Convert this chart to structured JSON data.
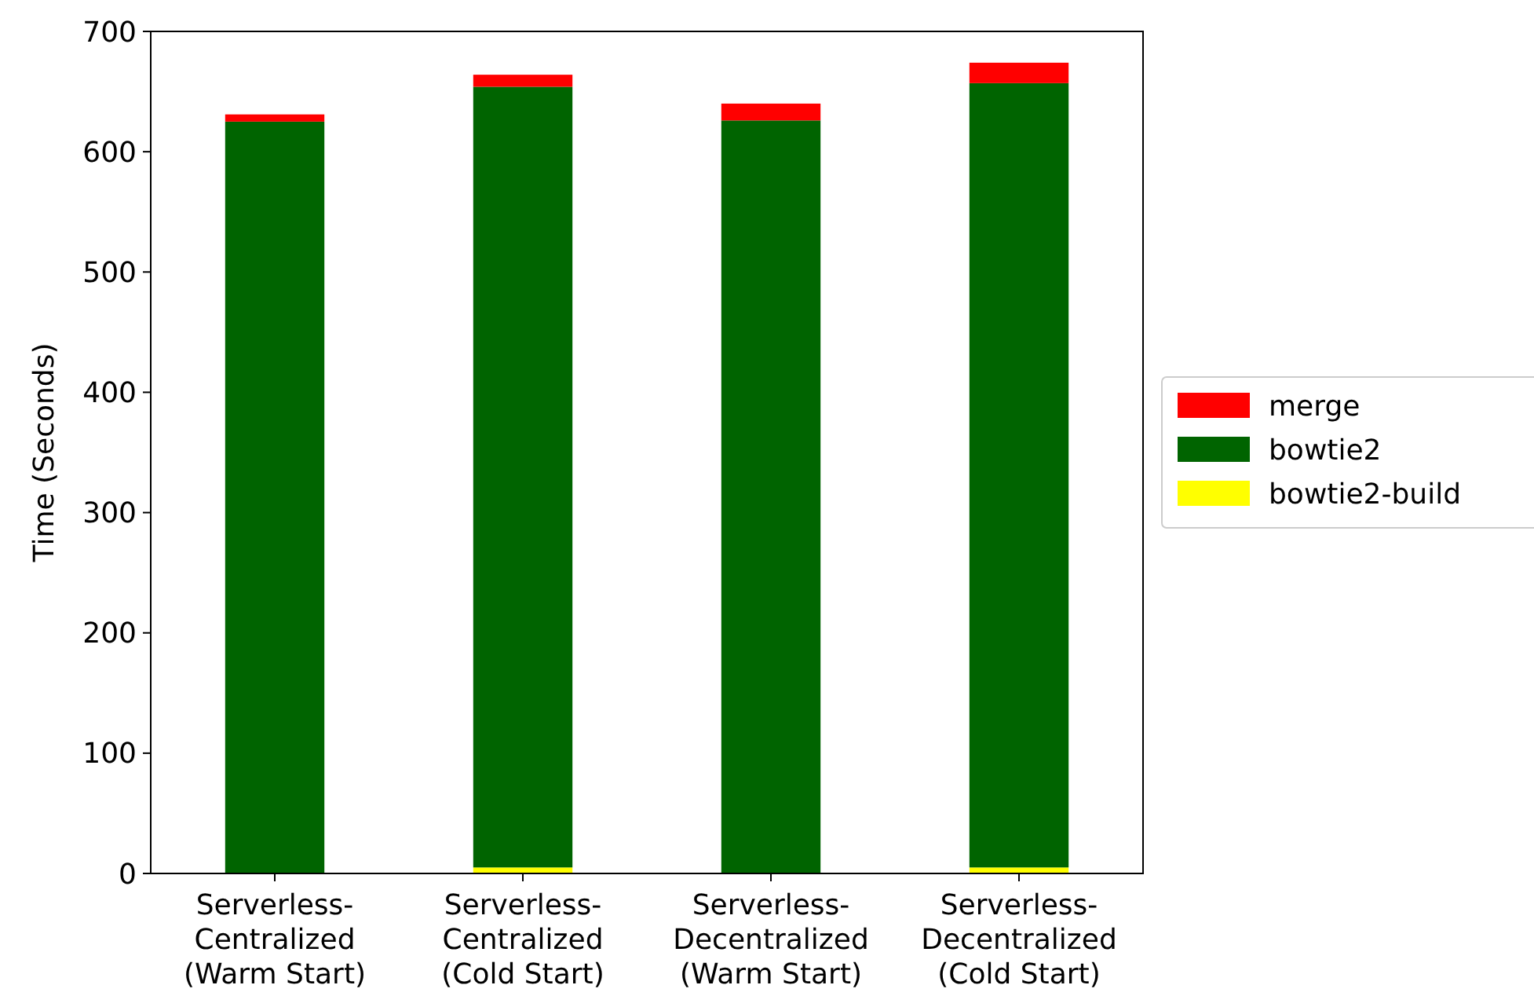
{
  "chart_data": {
    "type": "bar",
    "stacked": true,
    "ylabel": "Time (Seconds)",
    "categories": [
      "Serverless-\nCentralized\n(Warm Start)",
      "Serverless-\nCentralized\n(Cold Start)",
      "Serverless-\nDecentralized\n(Warm Start)",
      "Serverless-\nDecentralized\n(Cold Start)"
    ],
    "series": [
      {
        "name": "bowtie2-build",
        "color": "#ffff00",
        "values": [
          0,
          5,
          0,
          5
        ]
      },
      {
        "name": "bowtie2",
        "color": "#006400",
        "values": [
          625,
          649,
          626,
          652
        ]
      },
      {
        "name": "merge",
        "color": "#ff0000",
        "values": [
          6,
          10,
          14,
          17
        ]
      }
    ],
    "ylim": [
      0,
      700
    ],
    "yticks": [
      0,
      100,
      200,
      300,
      400,
      500,
      600,
      700
    ],
    "grid": false,
    "legend": "right"
  }
}
